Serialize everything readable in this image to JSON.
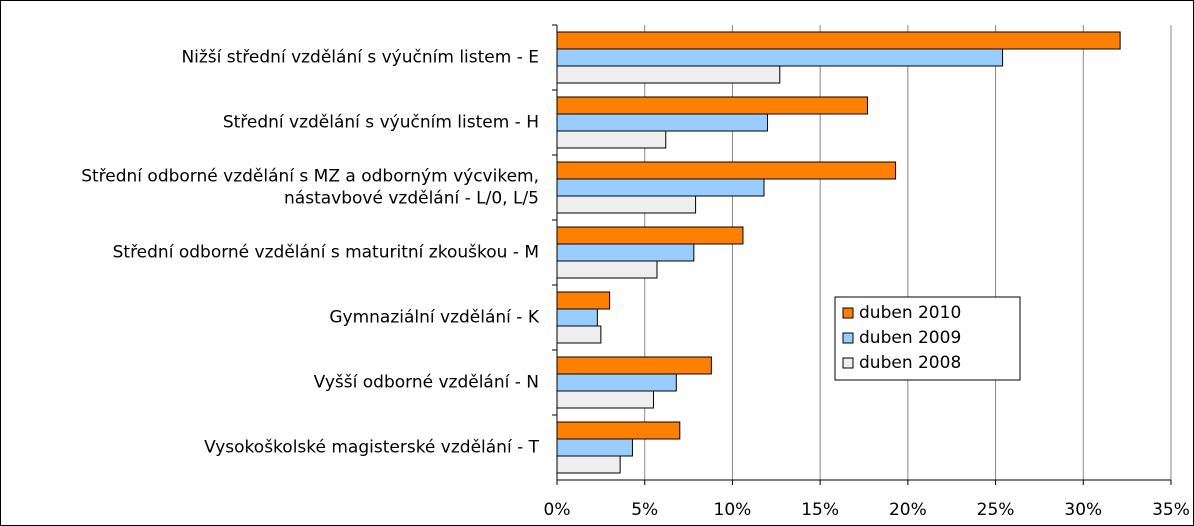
{
  "chart_data": {
    "type": "bar",
    "orientation": "horizontal",
    "categories": [
      "Nižší střední vzdělání s výučním listem - E",
      "Střední vzdělání s výučním listem - H",
      "Střední odborné vzdělání s MZ a odborným výcvikem,\nnástavbové vzdělání - L/0, L/5",
      "Střední odborné vzdělání s maturitní zkouškou - M",
      "Gymnaziální vzdělání - K",
      "Vyšší odborné vzdělání - N",
      "Vysokoškolské magisterské vzdělání - T"
    ],
    "series": [
      {
        "name": "duben 2010",
        "color": "#ff7f00",
        "values": [
          32.1,
          17.7,
          19.3,
          10.6,
          3.0,
          8.8,
          7.0
        ]
      },
      {
        "name": "duben 2009",
        "color": "#99ccff",
        "values": [
          25.4,
          12.0,
          11.8,
          7.8,
          2.3,
          6.8,
          4.3
        ]
      },
      {
        "name": "duben 2008",
        "color": "#eeeeee",
        "values": [
          12.7,
          6.2,
          7.9,
          5.7,
          2.5,
          5.5,
          3.6
        ]
      }
    ],
    "xlim": [
      0,
      35
    ],
    "xticks": [
      {
        "value": 0,
        "label": "0%"
      },
      {
        "value": 5,
        "label": "5%"
      },
      {
        "value": 10,
        "label": "10%"
      },
      {
        "value": 15,
        "label": "15%"
      },
      {
        "value": 20,
        "label": "20%"
      },
      {
        "value": 25,
        "label": "25%"
      },
      {
        "value": 30,
        "label": "30%"
      },
      {
        "value": 35,
        "label": "35%"
      }
    ],
    "grid": true,
    "legend": "right"
  }
}
